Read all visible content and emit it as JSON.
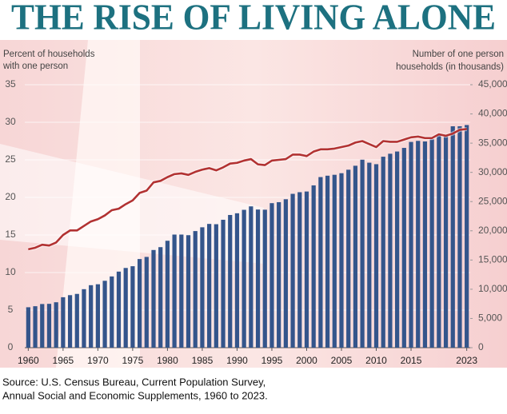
{
  "chart_data": {
    "type": "bar",
    "title": "THE RISE OF LIVING ALONE",
    "y_label": [
      "Percent of households",
      "with one person"
    ],
    "y2_label": [
      "Number of one person",
      "households (in thousands)"
    ],
    "source": [
      "Source: U.S. Census Bureau, Current Population Survey,",
      "Annual Social and Economic Supplements, 1960 to 2023."
    ],
    "x": [
      1960,
      1961,
      1962,
      1963,
      1964,
      1965,
      1966,
      1967,
      1968,
      1969,
      1970,
      1971,
      1972,
      1973,
      1974,
      1975,
      1976,
      1977,
      1978,
      1979,
      1980,
      1981,
      1982,
      1983,
      1984,
      1985,
      1986,
      1987,
      1988,
      1989,
      1990,
      1991,
      1992,
      1993,
      1994,
      1995,
      1996,
      1997,
      1998,
      1999,
      2000,
      2001,
      2002,
      2003,
      2004,
      2005,
      2006,
      2007,
      2008,
      2009,
      2010,
      2011,
      2012,
      2013,
      2014,
      2015,
      2016,
      2017,
      2018,
      2019,
      2020,
      2021,
      2022,
      2023
    ],
    "xlim": [
      1959.5,
      2023.5
    ],
    "xticks": [
      1960,
      1965,
      1970,
      1975,
      1980,
      1985,
      1990,
      1995,
      2000,
      2005,
      2010,
      2015,
      2023
    ],
    "ylim": [
      0,
      35
    ],
    "yticks": [
      0,
      5,
      10,
      15,
      20,
      25,
      30,
      35
    ],
    "y2lim": [
      0,
      45000
    ],
    "y2ticks": [
      0,
      {
        "value": 5000,
        "label": "5,000"
      },
      {
        "value": 10000,
        "label": "10,000"
      },
      {
        "value": 15000,
        "label": "15,000"
      },
      {
        "value": 20000,
        "label": "20,000"
      },
      {
        "value": 25000,
        "label": "25,000"
      },
      {
        "value": 30000,
        "label": "30,000"
      },
      {
        "value": 35000,
        "label": "35,000"
      },
      {
        "value": 40000,
        "label": "40,000"
      },
      {
        "value": 45000,
        "label": "45,000"
      }
    ],
    "grid": true,
    "series": [
      {
        "type": "bar",
        "axis": "y2",
        "color": "#34558b",
        "values": [
          6917,
          7094,
          7469,
          7501,
          7771,
          8631,
          8986,
          9200,
          10009,
          10692,
          10851,
          11446,
          12189,
          13017,
          13639,
          13939,
          15167,
          15532,
          16715,
          17202,
          18296,
          19354,
          19354,
          19250,
          19954,
          20602,
          21178,
          21128,
          21889,
          22708,
          22999,
          23590,
          24181,
          23642,
          23611,
          24732,
          24900,
          25402,
          26327,
          26606,
          26724,
          27775,
          29195,
          29431,
          29586,
          29858,
          30453,
          31132,
          32167,
          31657,
          31399,
          32680,
          33188,
          33570,
          34188,
          35208,
          35388,
          35292,
          35665,
          36479,
          36198,
          37890,
          37889,
          38100
        ]
      },
      {
        "type": "line",
        "color": "#b23232",
        "values": [
          13.1,
          13.3,
          13.7,
          13.6,
          14.0,
          15.0,
          15.6,
          15.6,
          16.2,
          16.8,
          17.1,
          17.6,
          18.3,
          18.5,
          19.1,
          19.6,
          20.6,
          20.9,
          22.0,
          22.2,
          22.7,
          23.1,
          23.2,
          23.0,
          23.4,
          23.7,
          23.9,
          23.6,
          24.0,
          24.5,
          24.6,
          24.9,
          25.1,
          24.4,
          24.3,
          24.9,
          25.0,
          25.1,
          25.7,
          25.7,
          25.5,
          26.1,
          26.4,
          26.4,
          26.5,
          26.7,
          26.9,
          27.3,
          27.5,
          27.1,
          26.7,
          27.5,
          27.4,
          27.4,
          27.7,
          28.0,
          28.1,
          27.9,
          27.9,
          28.4,
          28.2,
          28.5,
          29.0,
          29.1
        ]
      }
    ]
  }
}
